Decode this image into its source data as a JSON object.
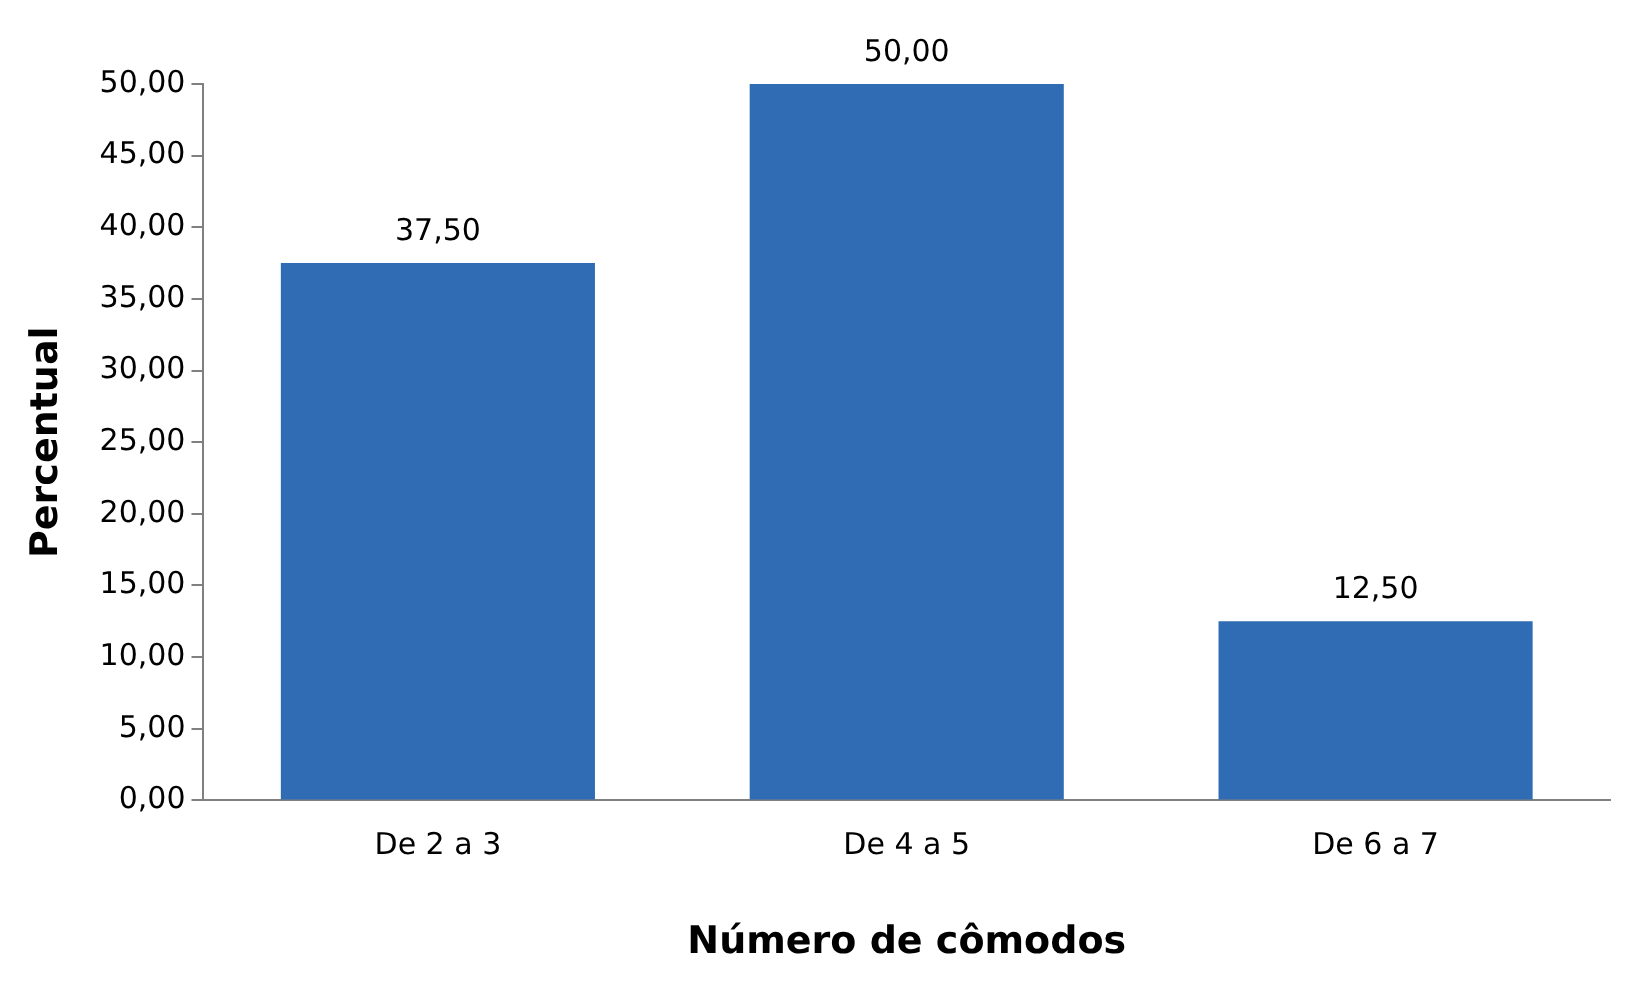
{
  "chart_data": {
    "type": "bar",
    "xlabel": "Número de cômodos",
    "ylabel": "Percentual",
    "categories": [
      "De 2 a 3",
      "De 4 a 5",
      "De 6 a 7"
    ],
    "values": [
      37.5,
      50,
      12.5
    ],
    "color": "#2f6cb4",
    "value_labels": [
      "37,50",
      "50,00",
      "12,50"
    ],
    "ylim": [
      0,
      50
    ],
    "yticks": [
      {
        "value": 0,
        "label": "0,00"
      },
      {
        "value": 5,
        "label": "5,00"
      },
      {
        "value": 10,
        "label": "10,00"
      },
      {
        "value": 15,
        "label": "15,00"
      },
      {
        "value": 20,
        "label": "20,00"
      },
      {
        "value": 25,
        "label": "25,00"
      },
      {
        "value": 30,
        "label": "30,00"
      },
      {
        "value": 35,
        "label": "35,00"
      },
      {
        "value": 40,
        "label": "40,00"
      },
      {
        "value": 45,
        "label": "45,00"
      },
      {
        "value": 50,
        "label": "50,00"
      }
    ],
    "grid": false,
    "legend": false
  }
}
